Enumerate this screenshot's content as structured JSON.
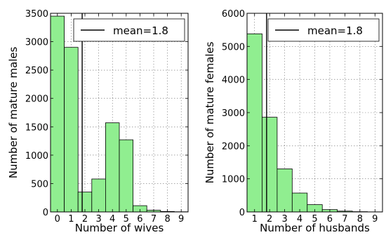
{
  "chart_data": [
    {
      "type": "bar",
      "xlabel": "Number of wives",
      "ylabel": "Number of mature males",
      "categories": [
        0,
        1,
        2,
        3,
        4,
        5,
        6,
        7,
        8,
        9
      ],
      "values": [
        3450,
        2900,
        350,
        580,
        1570,
        1270,
        110,
        30,
        8,
        3
      ],
      "xlim": [
        -0.5,
        9.5
      ],
      "ylim": [
        0,
        3500
      ],
      "xticks": [
        0,
        1,
        2,
        3,
        4,
        5,
        6,
        7,
        8,
        9
      ],
      "yticks": [
        0,
        500,
        1000,
        1500,
        2000,
        2500,
        3000,
        3500
      ],
      "mean": 1.8,
      "legend": {
        "label": "mean=1.8",
        "placement": "top-right"
      },
      "grid": true,
      "bar_color": "#90ee90"
    },
    {
      "type": "bar",
      "xlabel": "Number of husbands",
      "ylabel": "Number of mature females",
      "categories": [
        1,
        2,
        3,
        4,
        5,
        6,
        7,
        8,
        9
      ],
      "values": [
        5380,
        2860,
        1300,
        570,
        220,
        70,
        25,
        8,
        3
      ],
      "xlim": [
        0.5,
        9.5
      ],
      "ylim": [
        0,
        6000
      ],
      "xticks": [
        1,
        2,
        3,
        4,
        5,
        6,
        7,
        8,
        9
      ],
      "yticks": [
        0,
        1000,
        2000,
        3000,
        4000,
        5000,
        6000
      ],
      "mean": 1.8,
      "legend": {
        "label": "mean=1.8",
        "placement": "top-right"
      },
      "grid": true,
      "bar_color": "#90ee90"
    }
  ]
}
